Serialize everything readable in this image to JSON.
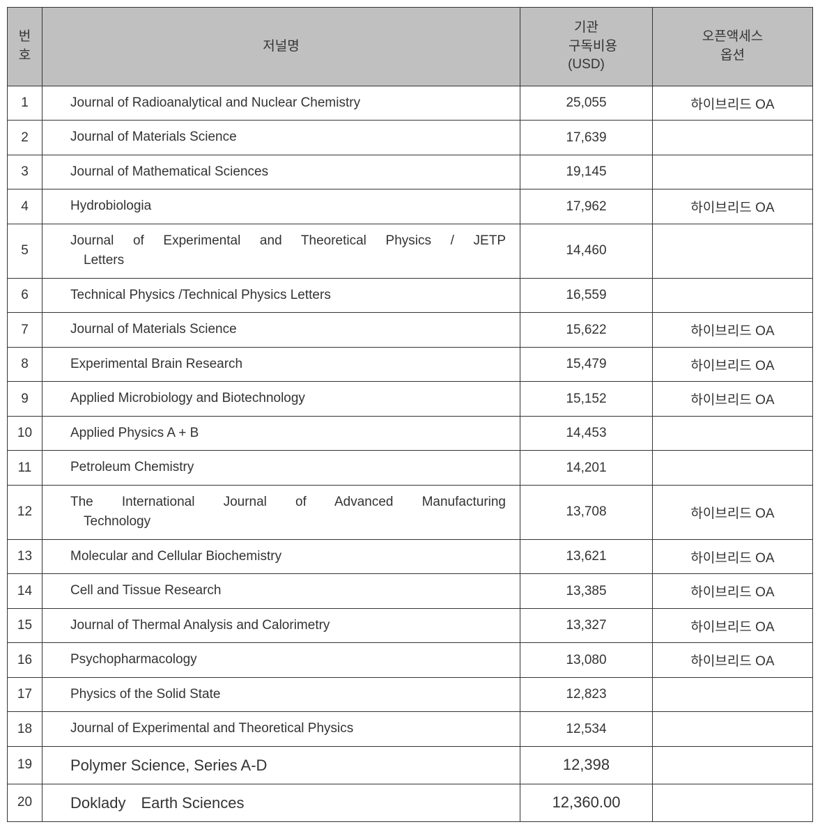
{
  "headers": {
    "num": "번\n호",
    "name": "저널명",
    "cost": "기관\n　구독비용\n(USD)",
    "oa": "오픈액세스\n옵션"
  },
  "rows": [
    {
      "num": "1",
      "name": "Journal of Radioanalytical and Nuclear Chemistry",
      "cost": "25,055",
      "oa": "하이브리드 OA",
      "justify": false,
      "large": false
    },
    {
      "num": "2",
      "name": "Journal of Materials Science",
      "cost": "17,639",
      "oa": "",
      "justify": false,
      "large": false
    },
    {
      "num": "3",
      "name": "Journal of Mathematical Sciences",
      "cost": "19,145",
      "oa": "",
      "justify": false,
      "large": false
    },
    {
      "num": "4",
      "name": "Hydrobiologia",
      "cost": "17,962",
      "oa": "하이브리드 OA",
      "justify": false,
      "large": false
    },
    {
      "num": "5",
      "name": "Journal of Experimental and Theoretical Physics / JETP\n　Letters",
      "cost": "14,460",
      "oa": "",
      "justify": true,
      "large": false
    },
    {
      "num": "6",
      "name": "Technical Physics /Technical Physics Letters",
      "cost": "16,559",
      "oa": "",
      "justify": false,
      "large": false
    },
    {
      "num": "7",
      "name": "Journal of Materials Science",
      "cost": "15,622",
      "oa": "하이브리드 OA",
      "justify": false,
      "large": false
    },
    {
      "num": "8",
      "name": "Experimental Brain Research",
      "cost": "15,479",
      "oa": "하이브리드 OA",
      "justify": false,
      "large": false
    },
    {
      "num": "9",
      "name": "Applied Microbiology and Biotechnology",
      "cost": "15,152",
      "oa": "하이브리드 OA",
      "justify": false,
      "large": false
    },
    {
      "num": "10",
      "name": "Applied Physics A + B",
      "cost": "14,453",
      "oa": "",
      "justify": false,
      "large": false
    },
    {
      "num": "11",
      "name": "Petroleum Chemistry",
      "cost": "14,201",
      "oa": "",
      "justify": false,
      "large": false
    },
    {
      "num": "12",
      "name": "The International Journal of Advanced Manufacturing\n　Technology",
      "cost": "13,708",
      "oa": "하이브리드 OA",
      "justify": true,
      "large": false
    },
    {
      "num": "13",
      "name": "Molecular and Cellular Biochemistry",
      "cost": "13,621",
      "oa": "하이브리드 OA",
      "justify": false,
      "large": false
    },
    {
      "num": "14",
      "name": "Cell and Tissue Research",
      "cost": "13,385",
      "oa": "하이브리드 OA",
      "justify": false,
      "large": false
    },
    {
      "num": "15",
      "name": "Journal of Thermal Analysis and Calorimetry",
      "cost": "13,327",
      "oa": "하이브리드 OA",
      "justify": false,
      "large": false
    },
    {
      "num": "16",
      "name": "Psychopharmacology",
      "cost": "13,080",
      "oa": "하이브리드 OA",
      "justify": false,
      "large": false
    },
    {
      "num": "17",
      "name": "Physics of the Solid State",
      "cost": "12,823",
      "oa": "",
      "justify": false,
      "large": false
    },
    {
      "num": "18",
      "name": "Journal of Experimental and Theoretical Physics",
      "cost": "12,534",
      "oa": "",
      "justify": false,
      "large": false
    },
    {
      "num": "19",
      "name": "Polymer Science, Series A-D",
      "cost": "12,398",
      "oa": "",
      "justify": false,
      "large": true
    },
    {
      "num": "20",
      "name": "Doklady　Earth Sciences",
      "cost": "12,360.00",
      "oa": "",
      "justify": false,
      "large": true
    }
  ],
  "styling": {
    "header_bg": "#c0c0c0",
    "border_color": "#333333",
    "text_color": "#333333",
    "body_bg": "#ffffff",
    "base_fontsize": 19,
    "large_fontsize": 22,
    "col_widths": {
      "num": 50,
      "cost": 190,
      "oa": 230
    }
  }
}
